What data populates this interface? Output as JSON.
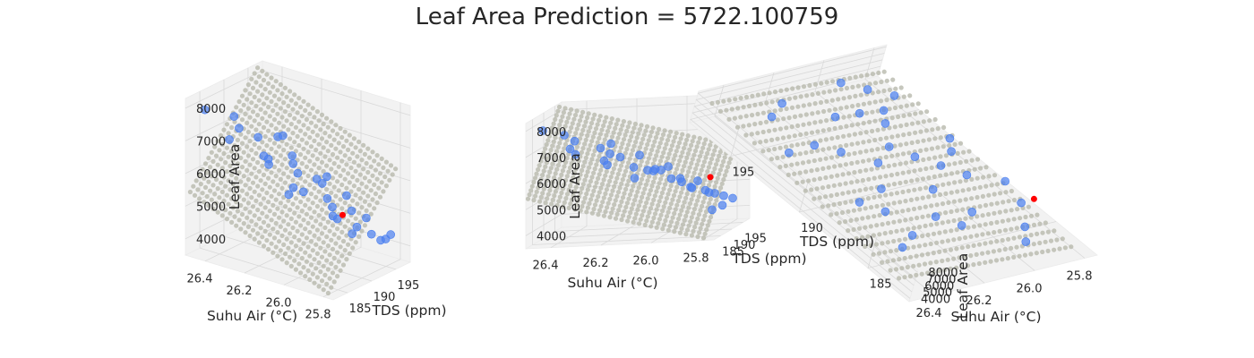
{
  "chart_data": {
    "type": "scatter",
    "title": "Leaf Area Prediction = 5722.100759",
    "xlabel": "Suhu Air (°C)",
    "ylabel": "TDS (ppm)",
    "zlabel": "Leaf Area",
    "xlim": [
      25.75,
      26.5
    ],
    "ylim": [
      182,
      198
    ],
    "zlim": [
      3500,
      8300
    ],
    "x_ticks": [
      "26.4",
      "26.2",
      "26.0",
      "25.8"
    ],
    "y_ticks": [
      "195",
      "190",
      "185"
    ],
    "z_ticks": [
      "4000",
      "5000",
      "6000",
      "7000",
      "8000"
    ],
    "x_tick_values": [
      26.4,
      26.2,
      26.0,
      25.8
    ],
    "y_tick_values": [
      195,
      190,
      185
    ],
    "z_tick_values": [
      4000,
      5000,
      6000,
      7000,
      8000
    ],
    "prediction_plane": {
      "intercept": 5722.100759,
      "slope_x": 2600,
      "slope_y": 200,
      "x0": 26.1,
      "y0": 190,
      "x_range": [
        25.8,
        26.5
      ],
      "y_range": [
        183,
        197
      ]
    },
    "predicted_point": {
      "x": 25.8,
      "y": 186,
      "z": 5722.100759,
      "color": "#ff0000"
    },
    "observed": [
      {
        "x": 26.45,
        "y": 184,
        "z": 7900
      },
      {
        "x": 26.4,
        "y": 188,
        "z": 7500
      },
      {
        "x": 26.35,
        "y": 187,
        "z": 7300
      },
      {
        "x": 26.3,
        "y": 193,
        "z": 6700
      },
      {
        "x": 26.25,
        "y": 192,
        "z": 6900
      },
      {
        "x": 26.2,
        "y": 186,
        "z": 6800
      },
      {
        "x": 26.15,
        "y": 185,
        "z": 6700
      },
      {
        "x": 26.1,
        "y": 188,
        "z": 6600
      },
      {
        "x": 26.05,
        "y": 192,
        "z": 5800
      },
      {
        "x": 26.0,
        "y": 195,
        "z": 5300
      },
      {
        "x": 26.0,
        "y": 191,
        "z": 5500
      },
      {
        "x": 25.95,
        "y": 190,
        "z": 5400
      },
      {
        "x": 25.95,
        "y": 194,
        "z": 5000
      },
      {
        "x": 25.9,
        "y": 189,
        "z": 5200
      },
      {
        "x": 25.9,
        "y": 195,
        "z": 4800
      },
      {
        "x": 25.85,
        "y": 191,
        "z": 4900
      },
      {
        "x": 25.85,
        "y": 186,
        "z": 5600
      },
      {
        "x": 25.8,
        "y": 192,
        "z": 4700
      },
      {
        "x": 25.8,
        "y": 196,
        "z": 4400
      },
      {
        "x": 26.05,
        "y": 186,
        "z": 6100
      },
      {
        "x": 26.1,
        "y": 195,
        "z": 5700
      },
      {
        "x": 26.2,
        "y": 197,
        "z": 5300
      },
      {
        "x": 26.3,
        "y": 196,
        "z": 5900
      },
      {
        "x": 25.95,
        "y": 184,
        "z": 6300
      },
      {
        "x": 26.25,
        "y": 189,
        "z": 6400
      },
      {
        "x": 25.85,
        "y": 197,
        "z": 4100
      },
      {
        "x": 26.15,
        "y": 191,
        "z": 6000
      },
      {
        "x": 25.9,
        "y": 198,
        "z": 3900
      },
      {
        "x": 26.4,
        "y": 193,
        "z": 6500
      },
      {
        "x": 26.35,
        "y": 185,
        "z": 7100
      },
      {
        "x": 25.8,
        "y": 188,
        "z": 5000
      },
      {
        "x": 26.0,
        "y": 183,
        "z": 6200
      }
    ],
    "colors": {
      "observed": "#4a7ff0",
      "plane": "#b8b9ad",
      "predicted": "#ff0000"
    },
    "panels": [
      {
        "view": "perspective-1"
      },
      {
        "view": "perspective-2"
      },
      {
        "view": "top-down"
      }
    ]
  }
}
